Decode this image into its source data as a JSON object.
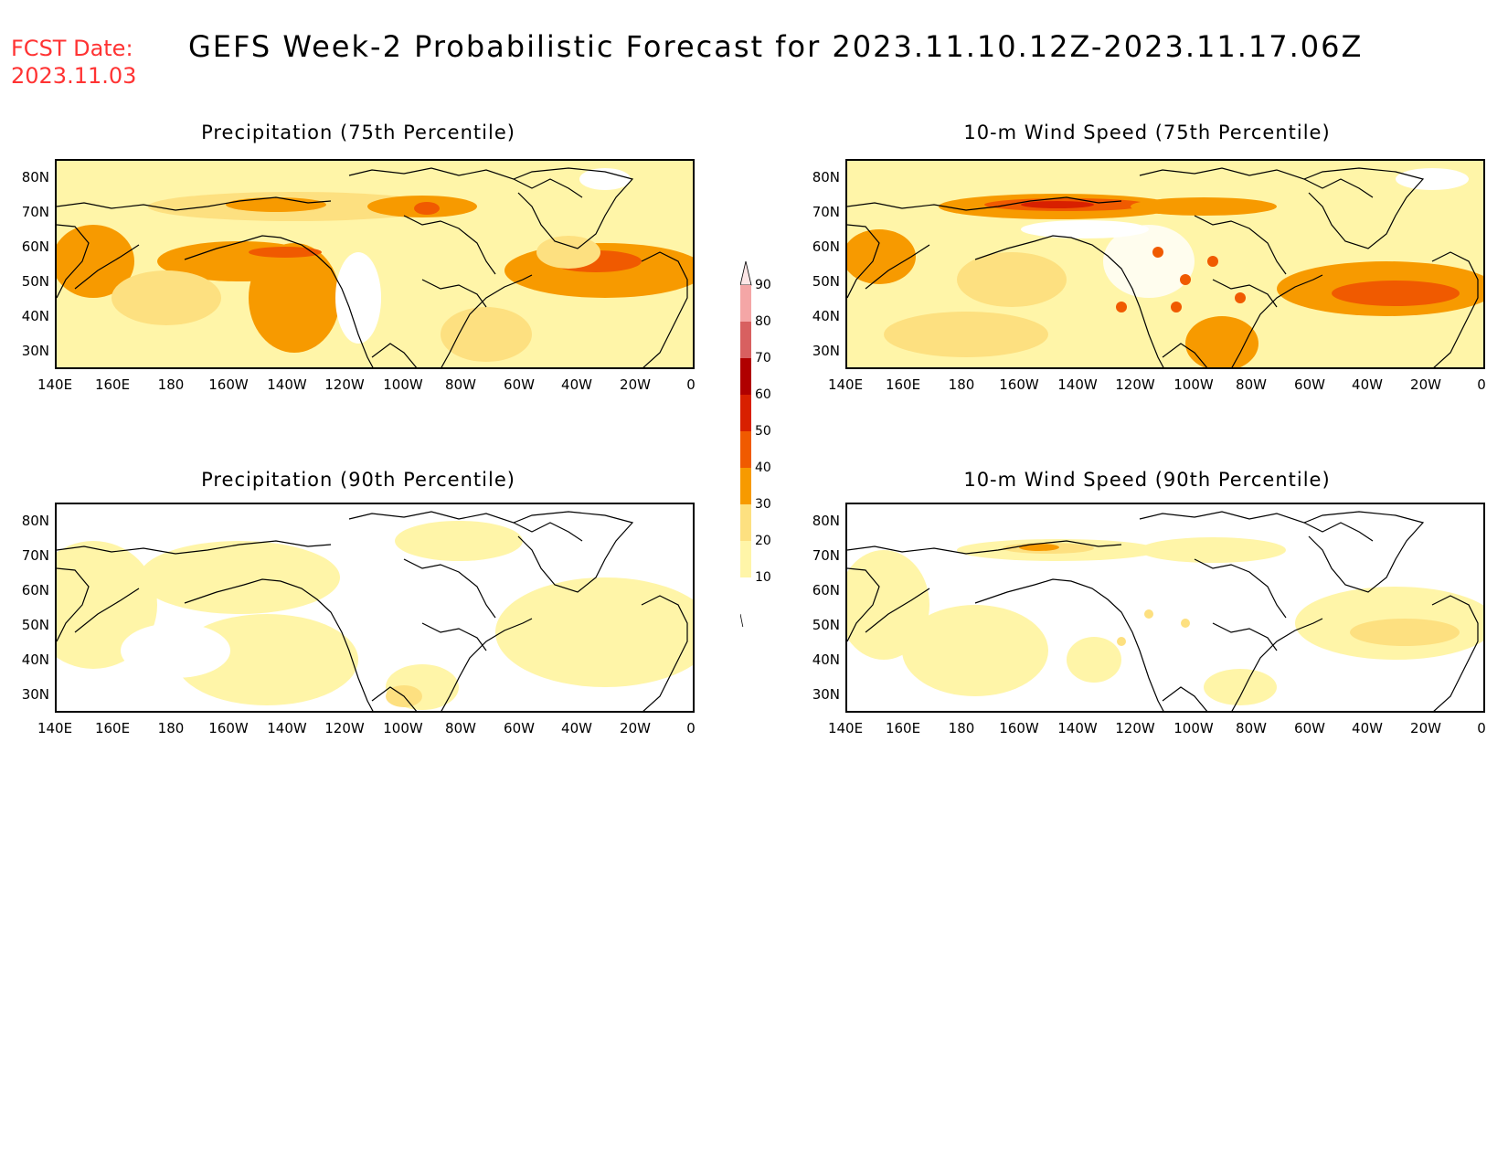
{
  "header": {
    "fcst_label": "FCST Date:",
    "fcst_date": "2023.11.03",
    "title": "GEFS Week-2 Probabilistic Forecast for 2023.11.10.12Z-2023.11.17.06Z"
  },
  "panels": [
    {
      "title": "Precipitation (75th Percentile)",
      "intensity": "high"
    },
    {
      "title": "10-m Wind Speed (75th Percentile)",
      "intensity": "high"
    },
    {
      "title": "Precipitation (90th Percentile)",
      "intensity": "low"
    },
    {
      "title": "10-m Wind Speed (90th Percentile)",
      "intensity": "low"
    }
  ],
  "axes": {
    "lat_labels": [
      "80N",
      "70N",
      "60N",
      "50N",
      "40N",
      "30N"
    ],
    "lon_labels": [
      "140E",
      "160E",
      "180",
      "160W",
      "140W",
      "120W",
      "100W",
      "80W",
      "60W",
      "40W",
      "20W",
      "0"
    ]
  },
  "colorbar": {
    "labels": [
      "90",
      "80",
      "70",
      "60",
      "50",
      "40",
      "30",
      "20",
      "10"
    ],
    "colors": [
      "#f4a6a6",
      "#d86060",
      "#b00000",
      "#d82000",
      "#f05a00",
      "#f79a00",
      "#fde080",
      "#fff5a8",
      "#ffffff"
    ]
  },
  "palette": {
    "c10": "#fff5a8",
    "c20": "#fde080",
    "c30": "#f79a00",
    "c40": "#f05a00",
    "c50": "#d82000",
    "c60": "#b00000"
  }
}
